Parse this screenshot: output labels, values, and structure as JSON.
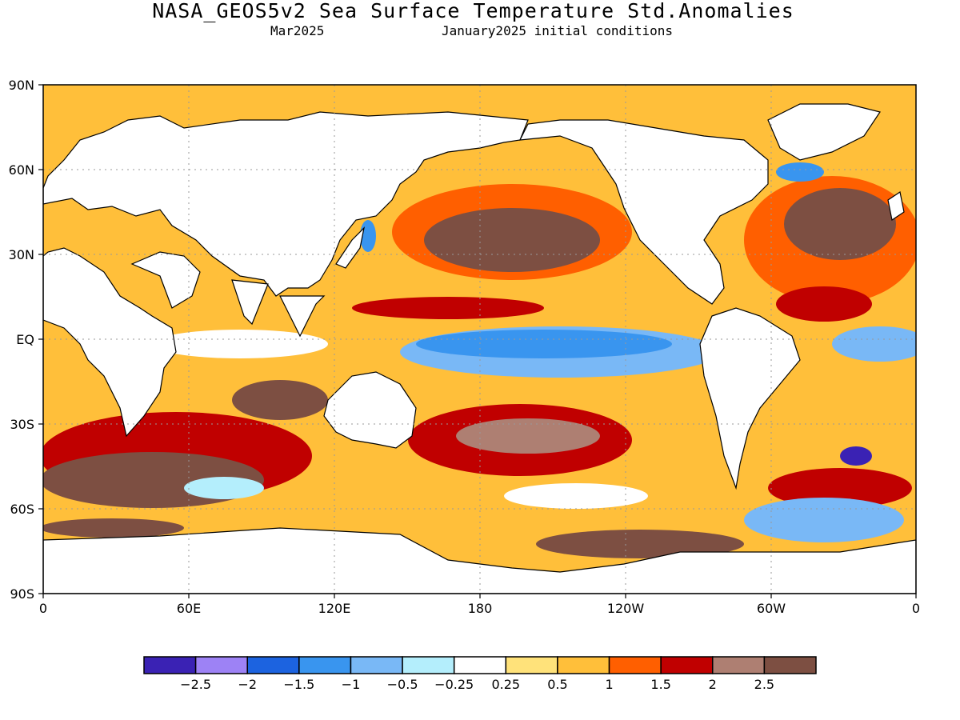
{
  "header": {
    "title": "NASA_GEOS5v2 Sea Surface Temperature Std.Anomalies",
    "left_subtitle": "Mar2025",
    "right_subtitle": "January2025 initial conditions"
  },
  "axes": {
    "y_ticks": [
      "90N",
      "60N",
      "30N",
      "EQ",
      "30S",
      "60S",
      "90S"
    ],
    "x_ticks": [
      "0",
      "60E",
      "120E",
      "180",
      "120W",
      "60W",
      "0"
    ]
  },
  "legend": {
    "colors": [
      "#3a22b4",
      "#9d82f5",
      "#1c63e0",
      "#3995ef",
      "#79b8f6",
      "#b4eefc",
      "#ffffff",
      "#ffe27a",
      "#ffbf3a",
      "#ff5f00",
      "#c00000",
      "#ae7f72",
      "#7d4f42"
    ],
    "labels": [
      "−2.5",
      "−2",
      "−1.5",
      "−1",
      "−0.5",
      "−0.25",
      "0.25",
      "0.5",
      "1",
      "1.5",
      "2",
      "2.5"
    ]
  },
  "map": {
    "lat_range": [
      -90,
      90
    ],
    "lon_range": [
      0,
      360
    ],
    "grid": true
  }
}
